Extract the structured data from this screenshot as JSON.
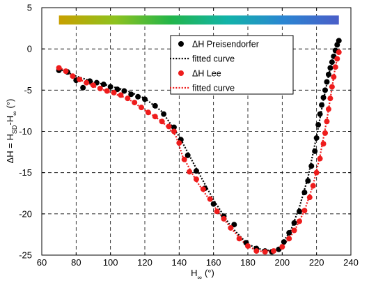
{
  "chart_data": {
    "type": "scatter",
    "xlim": [
      60,
      240
    ],
    "ylim": [
      -25,
      5
    ],
    "xticks": [
      "60",
      "80",
      "100",
      "120",
      "140",
      "160",
      "180",
      "200",
      "220",
      "240"
    ],
    "yticks": [
      "5",
      "0",
      "-5",
      "-10",
      "-15",
      "-20",
      "-25"
    ],
    "xtick_values": [
      60,
      80,
      100,
      120,
      140,
      160,
      180,
      200,
      220,
      240
    ],
    "ytick_values": [
      5,
      0,
      -5,
      -10,
      -15,
      -20,
      -25
    ],
    "grid": true,
    "legend_position": "top-right",
    "xlabel": {
      "main": "H",
      "sub": "∞",
      "unit": "(°)"
    },
    "ylabel": {
      "p1": "ΔH = H",
      "s1": "SD",
      "p2": "-H",
      "s2": "∞",
      "unit": "(°)"
    },
    "colorbar": {
      "x_range": [
        70,
        233
      ],
      "y": 3.5,
      "colors": [
        "#c8a000",
        "#8ec21f",
        "#22b54a",
        "#12b3a8",
        "#2a86d2",
        "#4a5ec8"
      ]
    },
    "series": [
      {
        "name": "ΔH Preisendorfer",
        "kind": "markers",
        "color": "#000000",
        "points": [
          [
            70,
            -2.6
          ],
          [
            75,
            -2.8
          ],
          [
            80,
            -3.8
          ],
          [
            84,
            -4.7
          ],
          [
            88,
            -3.9
          ],
          [
            92,
            -4.1
          ],
          [
            96,
            -4.3
          ],
          [
            100,
            -4.6
          ],
          [
            104,
            -4.9
          ],
          [
            108,
            -5.1
          ],
          [
            112,
            -5.5
          ],
          [
            116,
            -5.8
          ],
          [
            120,
            -6.1
          ],
          [
            126,
            -6.9
          ],
          [
            131,
            -7.9
          ],
          [
            137,
            -9.5
          ],
          [
            141,
            -11.0
          ],
          [
            145,
            -12.9
          ],
          [
            150,
            -14.8
          ],
          [
            155,
            -16.9
          ],
          [
            160,
            -18.8
          ],
          [
            166,
            -20.3
          ],
          [
            172,
            -21.3
          ],
          [
            179,
            -23.5
          ],
          [
            185,
            -24.2
          ],
          [
            190,
            -24.5
          ],
          [
            194,
            -24.6
          ],
          [
            198,
            -24.3
          ],
          [
            201,
            -23.4
          ],
          [
            204,
            -22.3
          ],
          [
            207,
            -21.1
          ],
          [
            210,
            -19.7
          ],
          [
            213,
            -17.4
          ],
          [
            215,
            -16.0
          ],
          [
            217,
            -14.2
          ],
          [
            219,
            -12.4
          ],
          [
            220,
            -10.8
          ],
          [
            221,
            -9.2
          ],
          [
            222,
            -7.9
          ],
          [
            223,
            -6.8
          ],
          [
            224,
            -5.9
          ],
          [
            225,
            -5.0
          ],
          [
            226,
            -4.0
          ],
          [
            227,
            -3.1
          ],
          [
            228,
            -2.3
          ],
          [
            229,
            -1.6
          ],
          [
            230,
            -0.9
          ],
          [
            231,
            -0.2
          ],
          [
            232,
            0.5
          ],
          [
            233,
            1.0
          ]
        ]
      },
      {
        "name": "fitted curve",
        "kind": "curve",
        "color": "#000000",
        "points": [
          [
            70,
            -2.4
          ],
          [
            80,
            -3.3
          ],
          [
            90,
            -4.0
          ],
          [
            100,
            -4.5
          ],
          [
            110,
            -5.1
          ],
          [
            120,
            -6.0
          ],
          [
            130,
            -7.6
          ],
          [
            140,
            -10.6
          ],
          [
            150,
            -14.5
          ],
          [
            160,
            -18.3
          ],
          [
            170,
            -21.5
          ],
          [
            180,
            -23.7
          ],
          [
            190,
            -24.5
          ],
          [
            198,
            -24.2
          ],
          [
            205,
            -22.0
          ],
          [
            210,
            -19.2
          ],
          [
            215,
            -15.6
          ],
          [
            220,
            -10.6
          ],
          [
            224,
            -6.2
          ],
          [
            228,
            -2.3
          ],
          [
            231,
            -0.1
          ],
          [
            233,
            1.0
          ]
        ]
      },
      {
        "name": "ΔH Lee",
        "kind": "markers",
        "color": "#ee1c1c",
        "points": [
          [
            70,
            -2.3
          ],
          [
            74,
            -2.7
          ],
          [
            78,
            -3.3
          ],
          [
            82,
            -3.7
          ],
          [
            86,
            -4.1
          ],
          [
            90,
            -4.4
          ],
          [
            94,
            -4.8
          ],
          [
            98,
            -5.1
          ],
          [
            102,
            -5.3
          ],
          [
            106,
            -5.6
          ],
          [
            110,
            -6.0
          ],
          [
            114,
            -6.5
          ],
          [
            118,
            -7.1
          ],
          [
            122,
            -7.7
          ],
          [
            126,
            -8.2
          ],
          [
            130,
            -8.8
          ],
          [
            134,
            -9.4
          ],
          [
            137,
            -10.0
          ],
          [
            140,
            -11.4
          ],
          [
            143,
            -13.4
          ],
          [
            146,
            -14.9
          ],
          [
            150,
            -15.8
          ],
          [
            154,
            -17.0
          ],
          [
            158,
            -18.2
          ],
          [
            162,
            -19.7
          ],
          [
            166,
            -20.6
          ],
          [
            170,
            -21.7
          ],
          [
            175,
            -23.0
          ],
          [
            180,
            -23.9
          ],
          [
            185,
            -24.5
          ],
          [
            190,
            -24.6
          ],
          [
            195,
            -24.5
          ],
          [
            200,
            -24.0
          ],
          [
            204,
            -23.0
          ],
          [
            207,
            -22.0
          ],
          [
            210,
            -20.9
          ],
          [
            213,
            -19.6
          ],
          [
            216,
            -18.0
          ],
          [
            218,
            -16.6
          ],
          [
            220,
            -15.0
          ],
          [
            222,
            -13.3
          ],
          [
            224,
            -11.5
          ],
          [
            225,
            -10.2
          ],
          [
            226,
            -8.8
          ],
          [
            227,
            -7.3
          ],
          [
            228,
            -6.0
          ],
          [
            229,
            -4.6
          ],
          [
            230,
            -3.4
          ],
          [
            231,
            -2.2
          ],
          [
            232,
            -1.2
          ],
          [
            233,
            -0.4
          ]
        ]
      },
      {
        "name": "fitted curve",
        "kind": "curve",
        "color": "#ee1c1c",
        "points": [
          [
            70,
            -2.2
          ],
          [
            80,
            -3.5
          ],
          [
            90,
            -4.5
          ],
          [
            100,
            -5.3
          ],
          [
            110,
            -6.0
          ],
          [
            120,
            -7.4
          ],
          [
            130,
            -8.8
          ],
          [
            138,
            -10.5
          ],
          [
            142,
            -13.0
          ],
          [
            150,
            -16.0
          ],
          [
            160,
            -19.0
          ],
          [
            170,
            -21.7
          ],
          [
            180,
            -24.0
          ],
          [
            190,
            -24.7
          ],
          [
            200,
            -24.0
          ],
          [
            207,
            -22.1
          ],
          [
            213,
            -19.6
          ],
          [
            218,
            -16.5
          ],
          [
            222,
            -13.0
          ],
          [
            226,
            -8.6
          ],
          [
            229,
            -4.7
          ],
          [
            231,
            -2.1
          ],
          [
            233,
            -0.4
          ]
        ]
      }
    ]
  }
}
